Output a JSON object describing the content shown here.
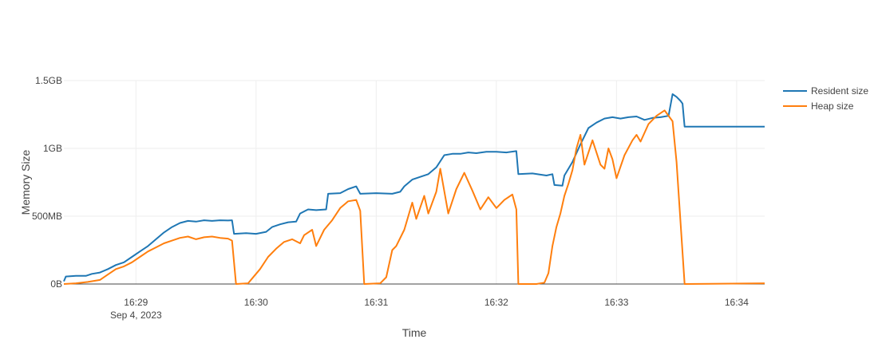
{
  "chart_data": {
    "type": "line",
    "title": "",
    "xlabel": "Time",
    "ylabel": "Memory Size",
    "x_unit": "time",
    "xlim": [
      "16:28:24",
      "16:34:14"
    ],
    "ylim": [
      0,
      1500
    ],
    "y_unit": "MB",
    "grid": true,
    "legend_position": "top-right",
    "x_ticks": [
      {
        "value": "16:29:00",
        "label": "16:29",
        "sublabel": "Sep 4, 2023"
      },
      {
        "value": "16:30:00",
        "label": "16:30",
        "sublabel": ""
      },
      {
        "value": "16:31:00",
        "label": "16:31",
        "sublabel": ""
      },
      {
        "value": "16:32:00",
        "label": "16:32",
        "sublabel": ""
      },
      {
        "value": "16:33:00",
        "label": "16:33",
        "sublabel": ""
      },
      {
        "value": "16:34:00",
        "label": "16:34",
        "sublabel": ""
      }
    ],
    "y_ticks": [
      {
        "value": 0,
        "label": "0B"
      },
      {
        "value": 500,
        "label": "500MB"
      },
      {
        "value": 1000,
        "label": "1GB"
      },
      {
        "value": 1500,
        "label": "1.5GB"
      }
    ],
    "series": [
      {
        "name": "Resident size",
        "color": "#1f77b4",
        "points": [
          [
            "16:28:24",
            20
          ],
          [
            "16:28:25",
            55
          ],
          [
            "16:28:30",
            60
          ],
          [
            "16:28:35",
            60
          ],
          [
            "16:28:38",
            75
          ],
          [
            "16:28:42",
            85
          ],
          [
            "16:28:46",
            110
          ],
          [
            "16:28:50",
            140
          ],
          [
            "16:28:54",
            160
          ],
          [
            "16:28:58",
            200
          ],
          [
            "16:29:02",
            240
          ],
          [
            "16:29:06",
            280
          ],
          [
            "16:29:10",
            330
          ],
          [
            "16:29:14",
            380
          ],
          [
            "16:29:18",
            420
          ],
          [
            "16:29:22",
            450
          ],
          [
            "16:29:26",
            465
          ],
          [
            "16:29:30",
            460
          ],
          [
            "16:29:34",
            470
          ],
          [
            "16:29:38",
            465
          ],
          [
            "16:29:42",
            470
          ],
          [
            "16:29:46",
            468
          ],
          [
            "16:29:48",
            470
          ],
          [
            "16:29:49",
            370
          ],
          [
            "16:29:55",
            375
          ],
          [
            "16:30:00",
            370
          ],
          [
            "16:30:05",
            385
          ],
          [
            "16:30:08",
            420
          ],
          [
            "16:30:12",
            440
          ],
          [
            "16:30:16",
            455
          ],
          [
            "16:30:20",
            460
          ],
          [
            "16:30:22",
            520
          ],
          [
            "16:30:26",
            550
          ],
          [
            "16:30:30",
            545
          ],
          [
            "16:30:35",
            550
          ],
          [
            "16:30:36",
            665
          ],
          [
            "16:30:42",
            670
          ],
          [
            "16:30:46",
            700
          ],
          [
            "16:30:50",
            720
          ],
          [
            "16:30:52",
            665
          ],
          [
            "16:31:00",
            670
          ],
          [
            "16:31:08",
            665
          ],
          [
            "16:31:12",
            680
          ],
          [
            "16:31:14",
            720
          ],
          [
            "16:31:18",
            770
          ],
          [
            "16:31:22",
            790
          ],
          [
            "16:31:26",
            810
          ],
          [
            "16:31:30",
            860
          ],
          [
            "16:31:34",
            950
          ],
          [
            "16:31:38",
            960
          ],
          [
            "16:31:42",
            960
          ],
          [
            "16:31:46",
            970
          ],
          [
            "16:31:50",
            965
          ],
          [
            "16:31:55",
            975
          ],
          [
            "16:32:00",
            975
          ],
          [
            "16:32:05",
            970
          ],
          [
            "16:32:10",
            980
          ],
          [
            "16:32:11",
            810
          ],
          [
            "16:32:18",
            815
          ],
          [
            "16:32:25",
            800
          ],
          [
            "16:32:28",
            810
          ],
          [
            "16:32:29",
            730
          ],
          [
            "16:32:33",
            725
          ],
          [
            "16:32:34",
            800
          ],
          [
            "16:32:38",
            900
          ],
          [
            "16:32:42",
            1030
          ],
          [
            "16:32:46",
            1150
          ],
          [
            "16:32:50",
            1190
          ],
          [
            "16:32:54",
            1220
          ],
          [
            "16:32:58",
            1230
          ],
          [
            "16:33:02",
            1220
          ],
          [
            "16:33:06",
            1230
          ],
          [
            "16:33:10",
            1235
          ],
          [
            "16:33:14",
            1210
          ],
          [
            "16:33:18",
            1225
          ],
          [
            "16:33:22",
            1230
          ],
          [
            "16:33:26",
            1240
          ],
          [
            "16:33:28",
            1400
          ],
          [
            "16:33:30",
            1380
          ],
          [
            "16:33:32",
            1350
          ],
          [
            "16:33:33",
            1330
          ],
          [
            "16:33:34",
            1160
          ],
          [
            "16:34:14",
            1160
          ]
        ]
      },
      {
        "name": "Heap size",
        "color": "#ff7f0e",
        "points": [
          [
            "16:28:24",
            0
          ],
          [
            "16:28:30",
            5
          ],
          [
            "16:28:36",
            15
          ],
          [
            "16:28:42",
            30
          ],
          [
            "16:28:46",
            70
          ],
          [
            "16:28:50",
            110
          ],
          [
            "16:28:54",
            130
          ],
          [
            "16:28:58",
            160
          ],
          [
            "16:29:02",
            200
          ],
          [
            "16:29:06",
            240
          ],
          [
            "16:29:10",
            270
          ],
          [
            "16:29:14",
            300
          ],
          [
            "16:29:18",
            320
          ],
          [
            "16:29:22",
            340
          ],
          [
            "16:29:26",
            350
          ],
          [
            "16:29:30",
            330
          ],
          [
            "16:29:34",
            345
          ],
          [
            "16:29:38",
            350
          ],
          [
            "16:29:42",
            340
          ],
          [
            "16:29:46",
            335
          ],
          [
            "16:29:48",
            320
          ],
          [
            "16:29:50",
            0
          ],
          [
            "16:29:56",
            5
          ],
          [
            "16:29:58",
            40
          ],
          [
            "16:30:02",
            110
          ],
          [
            "16:30:06",
            200
          ],
          [
            "16:30:10",
            260
          ],
          [
            "16:30:14",
            310
          ],
          [
            "16:30:18",
            330
          ],
          [
            "16:30:22",
            300
          ],
          [
            "16:30:24",
            360
          ],
          [
            "16:30:28",
            400
          ],
          [
            "16:30:30",
            280
          ],
          [
            "16:30:34",
            400
          ],
          [
            "16:30:38",
            470
          ],
          [
            "16:30:42",
            560
          ],
          [
            "16:30:46",
            610
          ],
          [
            "16:30:50",
            620
          ],
          [
            "16:30:52",
            540
          ],
          [
            "16:30:54",
            0
          ],
          [
            "16:31:02",
            5
          ],
          [
            "16:31:05",
            50
          ],
          [
            "16:31:08",
            250
          ],
          [
            "16:31:10",
            280
          ],
          [
            "16:31:14",
            400
          ],
          [
            "16:31:18",
            600
          ],
          [
            "16:31:20",
            480
          ],
          [
            "16:31:24",
            650
          ],
          [
            "16:31:26",
            520
          ],
          [
            "16:31:30",
            680
          ],
          [
            "16:31:32",
            850
          ],
          [
            "16:31:36",
            520
          ],
          [
            "16:31:40",
            700
          ],
          [
            "16:31:44",
            820
          ],
          [
            "16:31:48",
            690
          ],
          [
            "16:31:52",
            550
          ],
          [
            "16:31:56",
            640
          ],
          [
            "16:32:00",
            560
          ],
          [
            "16:32:04",
            620
          ],
          [
            "16:32:08",
            660
          ],
          [
            "16:32:10",
            550
          ],
          [
            "16:32:11",
            0
          ],
          [
            "16:32:20",
            0
          ],
          [
            "16:32:24",
            10
          ],
          [
            "16:32:26",
            80
          ],
          [
            "16:32:28",
            280
          ],
          [
            "16:32:30",
            420
          ],
          [
            "16:32:32",
            520
          ],
          [
            "16:32:34",
            650
          ],
          [
            "16:32:36",
            740
          ],
          [
            "16:32:38",
            840
          ],
          [
            "16:32:40",
            1000
          ],
          [
            "16:32:42",
            1100
          ],
          [
            "16:32:44",
            880
          ],
          [
            "16:32:48",
            1060
          ],
          [
            "16:32:52",
            880
          ],
          [
            "16:32:54",
            850
          ],
          [
            "16:32:56",
            1000
          ],
          [
            "16:32:58",
            920
          ],
          [
            "16:33:00",
            780
          ],
          [
            "16:33:04",
            950
          ],
          [
            "16:33:08",
            1060
          ],
          [
            "16:33:10",
            1100
          ],
          [
            "16:33:12",
            1050
          ],
          [
            "16:33:16",
            1180
          ],
          [
            "16:33:20",
            1240
          ],
          [
            "16:33:24",
            1280
          ],
          [
            "16:33:28",
            1200
          ],
          [
            "16:33:30",
            900
          ],
          [
            "16:33:34",
            0
          ],
          [
            "16:34:14",
            5
          ]
        ]
      }
    ]
  }
}
